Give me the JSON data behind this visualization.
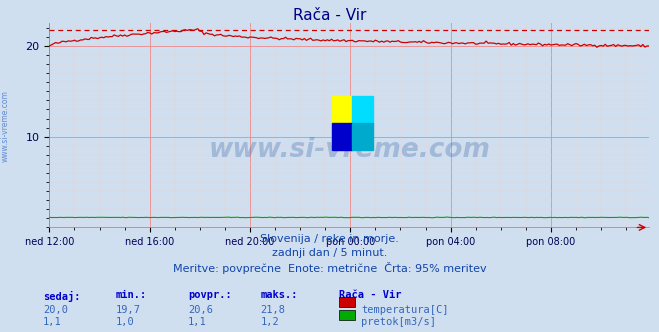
{
  "title": "Rača - Vir",
  "background_color": "#d0dff0",
  "plot_bg_color": "#d0dff0",
  "title_color": "#000080",
  "title_fontsize": 11,
  "ylim": [
    0,
    22.5
  ],
  "yticks": [
    10,
    20
  ],
  "n_points": 288,
  "temp_color": "#cc0000",
  "flow_color": "#00aa00",
  "dashed_line_color": "#cc0000",
  "grid_major_color": "#ee8888",
  "grid_minor_color": "#f5cccc",
  "x_tick_labels": [
    "ned 12:00",
    "ned 16:00",
    "ned 20:00",
    "pon 00:00",
    "pon 04:00",
    "pon 08:00"
  ],
  "x_tick_positions": [
    0,
    48,
    96,
    144,
    192,
    240
  ],
  "footer_line1": "Slovenija / reke in morje.",
  "footer_line2": "zadnji dan / 5 minut.",
  "footer_line3": "Meritve: povprečne  Enote: metrične  Črta: 95% meritev",
  "footer_color": "#1144aa",
  "footer_fontsize": 8,
  "legend_title": "Rača - Vir",
  "legend_items": [
    "temperatura[C]",
    "pretok[m3/s]"
  ],
  "legend_colors": [
    "#cc0000",
    "#00aa00"
  ],
  "table_headers": [
    "sedaj:",
    "min.:",
    "povpr.:",
    "maks.:"
  ],
  "table_values_temp": [
    "20,0",
    "19,7",
    "20,6",
    "21,8"
  ],
  "table_values_flow": [
    "1,1",
    "1,0",
    "1,1",
    "1,2"
  ],
  "watermark_text": "www.si-vreme.com",
  "watermark_color": "#3366aa",
  "watermark_alpha": 0.3,
  "left_label": "www.si-vreme.com",
  "left_label_color": "#4477cc",
  "header_color": "#0000cc",
  "value_color": "#3366bb",
  "dashed_y": 21.8,
  "icon_colors": [
    "#ffff00",
    "#00ddff",
    "#0000cc",
    "#00aacc"
  ],
  "arrow_color": "#cc0000"
}
